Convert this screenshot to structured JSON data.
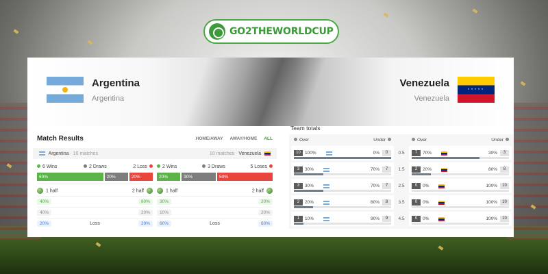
{
  "brand": {
    "name": "GO2THEWORLDCUP"
  },
  "home": {
    "name": "Argentina",
    "subtitle": "Argentina"
  },
  "away": {
    "name": "Venezuela",
    "subtitle": "Venezuela"
  },
  "match_results": {
    "title": "Match Results",
    "tabs": [
      "HOME/AWAY",
      "AWAY/HOME",
      "ALL"
    ],
    "active_tab": "ALL",
    "home_label": "Argentina",
    "home_matches": "· 10 matches",
    "away_matches": "10 matches ·",
    "away_label": "Venezuela",
    "home_stats": {
      "wins": "6 Wins",
      "draws": "2 Draws",
      "losses": "2 Loss",
      "win_pct": "60%",
      "draw_pct": "20%",
      "loss_pct": "20%",
      "win_share": 60,
      "draw_share": 20,
      "loss_share": 20,
      "first_half": "1 half",
      "second_half": "2 half",
      "rows": [
        {
          "left": "40%",
          "mid": "",
          "right": "60%",
          "style": "g"
        },
        {
          "left": "40%",
          "mid": "",
          "right": "20%",
          "style": "n"
        },
        {
          "left": "20%",
          "mid": "Loss",
          "right": "20%",
          "style": "b"
        }
      ]
    },
    "away_stats": {
      "wins": "2 Wins",
      "draws": "3 Draws",
      "losses": "5 Loses",
      "win_pct": "20%",
      "draw_pct": "30%",
      "loss_pct": "50%",
      "win_share": 20,
      "draw_share": 30,
      "loss_share": 50,
      "first_half": "1 half",
      "second_half": "2 half",
      "rows": [
        {
          "left": "30%",
          "mid": "",
          "right": "20%",
          "style": "g"
        },
        {
          "left": "10%",
          "mid": "",
          "right": "20%",
          "style": "n"
        },
        {
          "left": "60%",
          "mid": "Loss",
          "right": "60%",
          "style": "b"
        }
      ]
    }
  },
  "team_totals": {
    "title": "Team totals",
    "over_label": "Over",
    "under_label": "Under",
    "lines": [
      "0.5",
      "1.5",
      "2.5",
      "3.5",
      "4.5"
    ],
    "home_rows": [
      {
        "over": "10",
        "over_pct": "100%",
        "under_pct": "0%",
        "under": "0",
        "fill": 100
      },
      {
        "over": "3",
        "over_pct": "30%",
        "under_pct": "70%",
        "under": "7",
        "fill": 30
      },
      {
        "over": "3",
        "over_pct": "30%",
        "under_pct": "70%",
        "under": "7",
        "fill": 30
      },
      {
        "over": "2",
        "over_pct": "20%",
        "under_pct": "80%",
        "under": "8",
        "fill": 20
      },
      {
        "over": "1",
        "over_pct": "10%",
        "under_pct": "90%",
        "under": "9",
        "fill": 10
      }
    ],
    "away_rows": [
      {
        "over": "7",
        "over_pct": "70%",
        "under_pct": "30%",
        "under": "3",
        "fill": 70
      },
      {
        "over": "2",
        "over_pct": "20%",
        "under_pct": "80%",
        "under": "8",
        "fill": 20
      },
      {
        "over": "0",
        "over_pct": "0%",
        "under_pct": "100%",
        "under": "10",
        "fill": 0
      },
      {
        "over": "0",
        "over_pct": "0%",
        "under_pct": "100%",
        "under": "10",
        "fill": 0
      },
      {
        "over": "0",
        "over_pct": "0%",
        "under_pct": "100%",
        "under": "10",
        "fill": 0
      }
    ]
  },
  "colors": {
    "win": "#5bb34a",
    "draw": "#7d7d7d",
    "loss": "#e8453c",
    "brand": "#3d9a3a"
  },
  "icons": {
    "ball": "football-icon",
    "home_flag": "argentina-flag-icon",
    "away_flag": "venezuela-flag-icon"
  }
}
